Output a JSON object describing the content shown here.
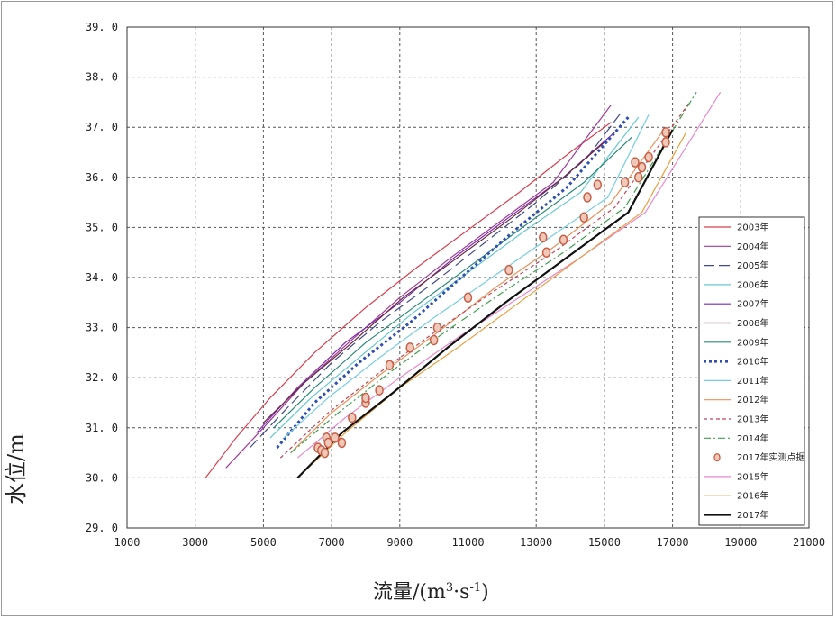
{
  "chart_data": {
    "type": "line",
    "xlabel_main": "流量/(m",
    "xlabel_sup1": "3",
    "xlabel_mid": "·s",
    "xlabel_sup2": "-1",
    "xlabel_end": ")",
    "ylabel": "水位/m",
    "xlim": [
      1000,
      21000
    ],
    "ylim": [
      29.0,
      39.0
    ],
    "xticks": [
      "1000",
      "3000",
      "5000",
      "7000",
      "9000",
      "11000",
      "13000",
      "15000",
      "17000",
      "19000",
      "21000"
    ],
    "yticks": [
      "29.0",
      "30.0",
      "31.0",
      "32.0",
      "33.0",
      "34.0",
      "35.0",
      "36.0",
      "37.0",
      "38.0",
      "39.0"
    ],
    "grid": true,
    "legend_position": "right",
    "series": [
      {
        "name": "2003年",
        "color": "#d84050",
        "dash": "solid",
        "width": 1.2,
        "x": [
          3300,
          4200,
          5200,
          6500,
          8000,
          9500,
          11000,
          12500,
          14000,
          15200
        ],
        "y": [
          30.0,
          30.8,
          31.6,
          32.5,
          33.4,
          34.2,
          34.95,
          35.7,
          36.5,
          37.1
        ]
      },
      {
        "name": "2004年",
        "color": "#a03a9a",
        "dash": "solid",
        "width": 1.2,
        "x": [
          3900,
          5000,
          6200,
          7500,
          9000,
          10500,
          12000,
          13500,
          15200
        ],
        "y": [
          30.2,
          31.0,
          31.9,
          32.7,
          33.6,
          34.4,
          35.15,
          35.9,
          37.45
        ]
      },
      {
        "name": "2005年",
        "color": "#404a8a",
        "dash": "longdash",
        "width": 1.2,
        "x": [
          4600,
          5700,
          7000,
          8400,
          10000,
          11500,
          13000,
          14500,
          15500
        ],
        "y": [
          30.6,
          31.4,
          32.3,
          33.1,
          33.9,
          34.7,
          35.5,
          36.4,
          37.3
        ]
      },
      {
        "name": "2006年",
        "color": "#66c8d0",
        "dash": "solid",
        "width": 1.2,
        "x": [
          5200,
          6400,
          7800,
          9400,
          11000,
          12600,
          14300,
          16000
        ],
        "y": [
          30.8,
          31.6,
          32.4,
          33.3,
          34.1,
          34.9,
          35.7,
          37.2
        ]
      },
      {
        "name": "2007年",
        "color": "#7a2ab0",
        "dash": "solid",
        "width": 1.2,
        "x": [
          4800,
          6000,
          7400,
          9000,
          10600,
          12200,
          13800,
          15300
        ],
        "y": [
          30.9,
          31.8,
          32.7,
          33.5,
          34.4,
          35.2,
          36.0,
          36.9
        ]
      },
      {
        "name": "2008年",
        "color": "#6a2838",
        "dash": "solid",
        "width": 1.2,
        "x": [
          5000,
          6200,
          7600,
          9100,
          10700,
          12300,
          13800,
          15000
        ],
        "y": [
          31.1,
          31.9,
          32.7,
          33.6,
          34.4,
          35.2,
          36.0,
          36.7
        ]
      },
      {
        "name": "2009年",
        "color": "#2a8878",
        "dash": "solid",
        "width": 1.2,
        "x": [
          5300,
          6500,
          8000,
          9600,
          11200,
          12800,
          14400,
          15800
        ],
        "y": [
          31.0,
          31.8,
          32.7,
          33.5,
          34.3,
          35.1,
          35.9,
          36.8
        ]
      },
      {
        "name": "2010年",
        "color": "#3050b0",
        "dash": "dotted",
        "width": 3,
        "x": [
          5400,
          6500,
          7800,
          9300,
          10800,
          12300,
          13900,
          15700
        ],
        "y": [
          30.6,
          31.5,
          32.3,
          33.1,
          34.0,
          34.9,
          35.8,
          37.2
        ]
      },
      {
        "name": "2011年",
        "color": "#78cce4",
        "dash": "solid",
        "width": 1.2,
        "x": [
          5600,
          6900,
          8400,
          10000,
          11700,
          13400,
          15100,
          16300
        ],
        "y": [
          30.8,
          31.6,
          32.4,
          33.2,
          34.0,
          34.8,
          35.6,
          37.25
        ]
      },
      {
        "name": "2012年",
        "color": "#e8905a",
        "dash": "solid",
        "width": 1.2,
        "x": [
          5800,
          7000,
          8500,
          10100,
          11800,
          13500,
          15200,
          16800
        ],
        "y": [
          30.5,
          31.3,
          32.1,
          32.9,
          33.8,
          34.6,
          35.5,
          37.0
        ]
      },
      {
        "name": "2013年",
        "color": "#c04458",
        "dash": "shortdash",
        "width": 1.2,
        "x": [
          5500,
          6900,
          8400,
          10000,
          11700,
          13500,
          15300,
          17500
        ],
        "y": [
          30.4,
          31.3,
          32.1,
          32.9,
          33.7,
          34.5,
          35.4,
          37.5
        ]
      },
      {
        "name": "2014年",
        "color": "#40a050",
        "dash": "dashdot",
        "width": 1.2,
        "x": [
          5800,
          7200,
          8700,
          10300,
          12000,
          13800,
          15600,
          17700
        ],
        "y": [
          30.5,
          31.3,
          32.1,
          32.9,
          33.7,
          34.5,
          35.4,
          37.7
        ]
      },
      {
        "name": "2015年",
        "color": "#e888cc",
        "dash": "solid",
        "width": 1.2,
        "x": [
          6000,
          7400,
          9000,
          10700,
          12500,
          14300,
          16200,
          18400
        ],
        "y": [
          30.4,
          31.2,
          32.0,
          32.8,
          33.6,
          34.4,
          35.3,
          37.7
        ]
      },
      {
        "name": "2016年",
        "color": "#e8a040",
        "dash": "solid",
        "width": 1.2,
        "x": [
          6000,
          7400,
          9000,
          10700,
          12500,
          14300,
          16100,
          17400
        ],
        "y": [
          30.0,
          30.9,
          31.8,
          32.6,
          33.5,
          34.4,
          35.3,
          36.9
        ]
      },
      {
        "name": "2017年",
        "color": "#111111",
        "dash": "solid",
        "width": 2.2,
        "x": [
          6000,
          7300,
          8800,
          10400,
          12100,
          13900,
          15700,
          17000
        ],
        "y": [
          30.0,
          30.9,
          31.7,
          32.6,
          33.5,
          34.4,
          35.3,
          36.95
        ]
      }
    ],
    "scatter": {
      "name": "2017年实测点据",
      "color": "#c86048",
      "fill": "#f0c8b8",
      "x": [
        6600,
        6700,
        6800,
        6850,
        6900,
        7100,
        7300,
        7600,
        8000,
        8000,
        8400,
        8700,
        9300,
        10000,
        10100,
        11000,
        12200,
        13200,
        13300,
        13800,
        14400,
        14500,
        14800,
        15600,
        15900,
        16000,
        16100,
        16300,
        16800,
        16800
      ],
      "y": [
        30.6,
        30.55,
        30.5,
        30.8,
        30.7,
        30.8,
        30.7,
        31.2,
        31.5,
        31.6,
        31.75,
        32.25,
        32.6,
        32.75,
        33.0,
        33.6,
        34.15,
        34.8,
        34.5,
        34.75,
        35.2,
        35.6,
        35.85,
        35.9,
        36.3,
        36.0,
        36.2,
        36.4,
        36.7,
        36.9
      ]
    }
  }
}
